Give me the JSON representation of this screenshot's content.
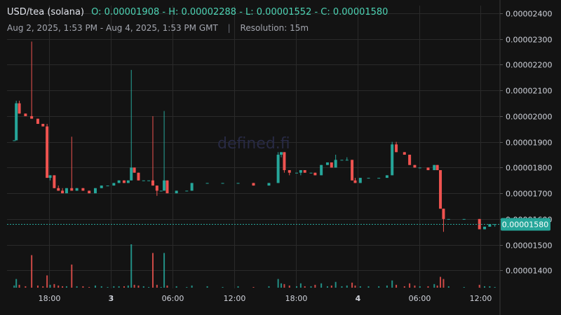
{
  "header": {
    "pair": "USD/tea (solana)",
    "ohlc": "O: 0.00001908 - H: 0.00002288 - L: 0.00001552 - C: 0.00001580"
  },
  "subheader": {
    "range": "Aug 2, 2025, 1:53 PM - Aug 4, 2025, 1:53 PM GMT",
    "separator": "|",
    "resolution": "Resolution: 15m"
  },
  "watermark": "defined.fi",
  "colors": {
    "up": "#26a69a",
    "down": "#ef5350",
    "bg": "#131313",
    "grid": "#2a2a2a",
    "price_tag": "#26a69a"
  },
  "chart_data": {
    "type": "candlestick",
    "y_ticks": [
      "0.00002400",
      "0.00002300",
      "0.00002200",
      "0.00002100",
      "0.00002000",
      "0.00001900",
      "0.00001800",
      "0.00001700",
      "0.00001600",
      "0.00001500",
      "0.00001400"
    ],
    "y_tick_values": [
      2.4e-05,
      2.3e-05,
      2.2e-05,
      2.1e-05,
      2e-05,
      1.9e-05,
      1.8e-05,
      1.7e-05,
      1.6e-05,
      1.5e-05,
      1.4e-05
    ],
    "ylim": [
      1.33e-05,
      2.43e-05
    ],
    "x_ticks": [
      {
        "label": "18:00",
        "t": 4.12,
        "bold": false
      },
      {
        "label": "3",
        "t": 10.12,
        "bold": true
      },
      {
        "label": "06:00",
        "t": 16.12,
        "bold": false
      },
      {
        "label": "12:00",
        "t": 22.12,
        "bold": false
      },
      {
        "label": "18:00",
        "t": 28.12,
        "bold": false
      },
      {
        "label": "4",
        "t": 34.12,
        "bold": true
      },
      {
        "label": "06:00",
        "t": 40.12,
        "bold": false
      },
      {
        "label": "12:00",
        "t": 46.12,
        "bold": false
      }
    ],
    "x_range_hours": [
      0,
      48
    ],
    "last_price": "0.00001580",
    "last_price_value": 1.58e-05,
    "candles": [
      {
        "t": 0.7,
        "o": 1.906e-05,
        "h": 1.906e-05,
        "l": 1.906e-05,
        "c": 1.906e-05,
        "v": 3
      },
      {
        "t": 0.9,
        "o": 1.906e-05,
        "h": 2.06e-05,
        "l": 1.906e-05,
        "c": 2.05e-05,
        "v": 12
      },
      {
        "t": 1.2,
        "o": 2.05e-05,
        "h": 2.06e-05,
        "l": 2.01e-05,
        "c": 2.01e-05,
        "v": 4
      },
      {
        "t": 1.8,
        "o": 2.01e-05,
        "h": 2.01e-05,
        "l": 2e-05,
        "c": 2e-05,
        "v": 2
      },
      {
        "t": 2.4,
        "o": 2e-05,
        "h": 2.29e-05,
        "l": 1.99e-05,
        "c": 1.99e-05,
        "v": 45
      },
      {
        "t": 3.0,
        "o": 1.99e-05,
        "h": 1.99e-05,
        "l": 1.97e-05,
        "c": 1.97e-05,
        "v": 3
      },
      {
        "t": 3.5,
        "o": 1.97e-05,
        "h": 1.97e-05,
        "l": 1.96e-05,
        "c": 1.96e-05,
        "v": 2
      },
      {
        "t": 3.9,
        "o": 1.96e-05,
        "h": 1.97e-05,
        "l": 1.76e-05,
        "c": 1.76e-05,
        "v": 17
      },
      {
        "t": 4.2,
        "o": 1.76e-05,
        "h": 1.77e-05,
        "l": 1.75e-05,
        "c": 1.77e-05,
        "v": 4
      },
      {
        "t": 4.6,
        "o": 1.77e-05,
        "h": 1.77e-05,
        "l": 1.72e-05,
        "c": 1.72e-05,
        "v": 5
      },
      {
        "t": 5.0,
        "o": 1.72e-05,
        "h": 1.73e-05,
        "l": 1.71e-05,
        "c": 1.71e-05,
        "v": 3
      },
      {
        "t": 5.4,
        "o": 1.71e-05,
        "h": 1.72e-05,
        "l": 1.7e-05,
        "c": 1.7e-05,
        "v": 2
      },
      {
        "t": 5.8,
        "o": 1.7e-05,
        "h": 1.72e-05,
        "l": 1.7e-05,
        "c": 1.72e-05,
        "v": 2
      },
      {
        "t": 6.3,
        "o": 1.72e-05,
        "h": 1.92e-05,
        "l": 1.71e-05,
        "c": 1.71e-05,
        "v": 32
      },
      {
        "t": 6.8,
        "o": 1.71e-05,
        "h": 1.72e-05,
        "l": 1.71e-05,
        "c": 1.72e-05,
        "v": 2
      },
      {
        "t": 7.4,
        "o": 1.72e-05,
        "h": 1.72e-05,
        "l": 1.71e-05,
        "c": 1.71e-05,
        "v": 2
      },
      {
        "t": 8.0,
        "o": 1.71e-05,
        "h": 1.71e-05,
        "l": 1.7e-05,
        "c": 1.7e-05,
        "v": 1
      },
      {
        "t": 8.6,
        "o": 1.7e-05,
        "h": 1.72e-05,
        "l": 1.7e-05,
        "c": 1.72e-05,
        "v": 3
      },
      {
        "t": 9.2,
        "o": 1.72e-05,
        "h": 1.73e-05,
        "l": 1.72e-05,
        "c": 1.73e-05,
        "v": 2
      },
      {
        "t": 9.8,
        "o": 1.73e-05,
        "h": 1.73e-05,
        "l": 1.73e-05,
        "c": 1.73e-05,
        "v": 1
      },
      {
        "t": 10.4,
        "o": 1.73e-05,
        "h": 1.74e-05,
        "l": 1.73e-05,
        "c": 1.74e-05,
        "v": 2
      },
      {
        "t": 10.9,
        "o": 1.74e-05,
        "h": 1.75e-05,
        "l": 1.74e-05,
        "c": 1.75e-05,
        "v": 2
      },
      {
        "t": 11.4,
        "o": 1.75e-05,
        "h": 1.75e-05,
        "l": 1.74e-05,
        "c": 1.74e-05,
        "v": 2
      },
      {
        "t": 11.8,
        "o": 1.74e-05,
        "h": 1.75e-05,
        "l": 1.74e-05,
        "c": 1.75e-05,
        "v": 3
      },
      {
        "t": 12.1,
        "o": 1.75e-05,
        "h": 2.18e-05,
        "l": 1.75e-05,
        "c": 1.8e-05,
        "v": 60
      },
      {
        "t": 12.4,
        "o": 1.8e-05,
        "h": 1.8e-05,
        "l": 1.78e-05,
        "c": 1.78e-05,
        "v": 4
      },
      {
        "t": 12.8,
        "o": 1.78e-05,
        "h": 1.78e-05,
        "l": 1.75e-05,
        "c": 1.75e-05,
        "v": 3
      },
      {
        "t": 13.3,
        "o": 1.75e-05,
        "h": 1.75e-05,
        "l": 1.75e-05,
        "c": 1.75e-05,
        "v": 2
      },
      {
        "t": 13.8,
        "o": 1.75e-05,
        "h": 1.75e-05,
        "l": 1.75e-05,
        "c": 1.75e-05,
        "v": 1
      },
      {
        "t": 14.2,
        "o": 1.75e-05,
        "h": 2e-05,
        "l": 1.73e-05,
        "c": 1.73e-05,
        "v": 48
      },
      {
        "t": 14.6,
        "o": 1.73e-05,
        "h": 1.73e-05,
        "l": 1.69e-05,
        "c": 1.71e-05,
        "v": 4
      },
      {
        "t": 15.0,
        "o": 1.71e-05,
        "h": 1.71e-05,
        "l": 1.71e-05,
        "c": 1.71e-05,
        "v": 1
      },
      {
        "t": 15.3,
        "o": 1.71e-05,
        "h": 2.02e-05,
        "l": 1.71e-05,
        "c": 1.75e-05,
        "v": 48
      },
      {
        "t": 15.6,
        "o": 1.75e-05,
        "h": 1.75e-05,
        "l": 1.7e-05,
        "c": 1.7e-05,
        "v": 3
      },
      {
        "t": 16.5,
        "o": 1.7e-05,
        "h": 1.71e-05,
        "l": 1.7e-05,
        "c": 1.71e-05,
        "v": 2
      },
      {
        "t": 17.5,
        "o": 1.71e-05,
        "h": 1.71e-05,
        "l": 1.71e-05,
        "c": 1.71e-05,
        "v": 1
      },
      {
        "t": 18.0,
        "o": 1.71e-05,
        "h": 1.74e-05,
        "l": 1.71e-05,
        "c": 1.74e-05,
        "v": 3
      },
      {
        "t": 19.5,
        "o": 1.74e-05,
        "h": 1.74e-05,
        "l": 1.74e-05,
        "c": 1.74e-05,
        "v": 2
      },
      {
        "t": 21.0,
        "o": 1.74e-05,
        "h": 1.74e-05,
        "l": 1.74e-05,
        "c": 1.74e-05,
        "v": 1
      },
      {
        "t": 22.5,
        "o": 1.74e-05,
        "h": 1.74e-05,
        "l": 1.74e-05,
        "c": 1.74e-05,
        "v": 2
      },
      {
        "t": 24.0,
        "o": 1.74e-05,
        "h": 1.74e-05,
        "l": 1.73e-05,
        "c": 1.73e-05,
        "v": 1
      },
      {
        "t": 25.5,
        "o": 1.73e-05,
        "h": 1.74e-05,
        "l": 1.73e-05,
        "c": 1.74e-05,
        "v": 2
      },
      {
        "t": 26.4,
        "o": 1.74e-05,
        "h": 1.86e-05,
        "l": 1.74e-05,
        "c": 1.85e-05,
        "v": 12
      },
      {
        "t": 26.7,
        "o": 1.85e-05,
        "h": 1.86e-05,
        "l": 1.84e-05,
        "c": 1.86e-05,
        "v": 6
      },
      {
        "t": 27.0,
        "o": 1.86e-05,
        "h": 1.86e-05,
        "l": 1.78e-05,
        "c": 1.79e-05,
        "v": 5
      },
      {
        "t": 27.5,
        "o": 1.79e-05,
        "h": 1.79e-05,
        "l": 1.77e-05,
        "c": 1.78e-05,
        "v": 3
      },
      {
        "t": 28.2,
        "o": 1.78e-05,
        "h": 1.78e-05,
        "l": 1.78e-05,
        "c": 1.78e-05,
        "v": 2
      },
      {
        "t": 28.6,
        "o": 1.78e-05,
        "h": 1.79e-05,
        "l": 1.77e-05,
        "c": 1.79e-05,
        "v": 6
      },
      {
        "t": 29.0,
        "o": 1.79e-05,
        "h": 1.79e-05,
        "l": 1.78e-05,
        "c": 1.78e-05,
        "v": 2
      },
      {
        "t": 29.6,
        "o": 1.78e-05,
        "h": 1.78e-05,
        "l": 1.78e-05,
        "c": 1.78e-05,
        "v": 2
      },
      {
        "t": 30.0,
        "o": 1.78e-05,
        "h": 1.78e-05,
        "l": 1.77e-05,
        "c": 1.77e-05,
        "v": 4
      },
      {
        "t": 30.6,
        "o": 1.77e-05,
        "h": 1.81e-05,
        "l": 1.77e-05,
        "c": 1.81e-05,
        "v": 6
      },
      {
        "t": 31.2,
        "o": 1.81e-05,
        "h": 1.82e-05,
        "l": 1.81e-05,
        "c": 1.82e-05,
        "v": 2
      },
      {
        "t": 31.6,
        "o": 1.82e-05,
        "h": 1.82e-05,
        "l": 1.8e-05,
        "c": 1.8e-05,
        "v": 3
      },
      {
        "t": 32.0,
        "o": 1.8e-05,
        "h": 1.85e-05,
        "l": 1.8e-05,
        "c": 1.83e-05,
        "v": 8
      },
      {
        "t": 32.6,
        "o": 1.83e-05,
        "h": 1.83e-05,
        "l": 1.83e-05,
        "c": 1.83e-05,
        "v": 2
      },
      {
        "t": 33.1,
        "o": 1.83e-05,
        "h": 1.84e-05,
        "l": 1.83e-05,
        "c": 1.83e-05,
        "v": 3
      },
      {
        "t": 33.6,
        "o": 1.83e-05,
        "h": 1.83e-05,
        "l": 1.75e-05,
        "c": 1.75e-05,
        "v": 7
      },
      {
        "t": 33.9,
        "o": 1.75e-05,
        "h": 1.76e-05,
        "l": 1.74e-05,
        "c": 1.74e-05,
        "v": 3
      },
      {
        "t": 34.4,
        "o": 1.74e-05,
        "h": 1.76e-05,
        "l": 1.74e-05,
        "c": 1.76e-05,
        "v": 2
      },
      {
        "t": 35.2,
        "o": 1.76e-05,
        "h": 1.76e-05,
        "l": 1.76e-05,
        "c": 1.76e-05,
        "v": 2
      },
      {
        "t": 36.2,
        "o": 1.76e-05,
        "h": 1.76e-05,
        "l": 1.76e-05,
        "c": 1.76e-05,
        "v": 2
      },
      {
        "t": 37.0,
        "o": 1.76e-05,
        "h": 1.77e-05,
        "l": 1.76e-05,
        "c": 1.77e-05,
        "v": 3
      },
      {
        "t": 37.5,
        "o": 1.77e-05,
        "h": 1.9e-05,
        "l": 1.77e-05,
        "c": 1.89e-05,
        "v": 10
      },
      {
        "t": 37.9,
        "o": 1.89e-05,
        "h": 1.9e-05,
        "l": 1.86e-05,
        "c": 1.86e-05,
        "v": 4
      },
      {
        "t": 38.7,
        "o": 1.86e-05,
        "h": 1.86e-05,
        "l": 1.85e-05,
        "c": 1.85e-05,
        "v": 2
      },
      {
        "t": 39.2,
        "o": 1.85e-05,
        "h": 1.85e-05,
        "l": 1.81e-05,
        "c": 1.81e-05,
        "v": 6
      },
      {
        "t": 39.7,
        "o": 1.81e-05,
        "h": 1.81e-05,
        "l": 1.8e-05,
        "c": 1.8e-05,
        "v": 3
      },
      {
        "t": 40.2,
        "o": 1.8e-05,
        "h": 1.8e-05,
        "l": 1.8e-05,
        "c": 1.8e-05,
        "v": 2
      },
      {
        "t": 41.0,
        "o": 1.8e-05,
        "h": 1.8e-05,
        "l": 1.79e-05,
        "c": 1.79e-05,
        "v": 2
      },
      {
        "t": 41.6,
        "o": 1.79e-05,
        "h": 1.81e-05,
        "l": 1.79e-05,
        "c": 1.81e-05,
        "v": 5
      },
      {
        "t": 41.9,
        "o": 1.81e-05,
        "h": 1.81e-05,
        "l": 1.79e-05,
        "c": 1.79e-05,
        "v": 3
      },
      {
        "t": 42.2,
        "o": 1.79e-05,
        "h": 1.79e-05,
        "l": 1.64e-05,
        "c": 1.64e-05,
        "v": 15
      },
      {
        "t": 42.5,
        "o": 1.64e-05,
        "h": 1.64e-05,
        "l": 1.55e-05,
        "c": 1.6e-05,
        "v": 12
      },
      {
        "t": 43.0,
        "o": 1.6e-05,
        "h": 1.6e-05,
        "l": 1.6e-05,
        "c": 1.6e-05,
        "v": 2
      },
      {
        "t": 44.5,
        "o": 1.6e-05,
        "h": 1.6e-05,
        "l": 1.6e-05,
        "c": 1.6e-05,
        "v": 1
      },
      {
        "t": 46.0,
        "o": 1.6e-05,
        "h": 1.6e-05,
        "l": 1.56e-05,
        "c": 1.56e-05,
        "v": 4
      },
      {
        "t": 46.5,
        "o": 1.56e-05,
        "h": 1.57e-05,
        "l": 1.56e-05,
        "c": 1.57e-05,
        "v": 2
      },
      {
        "t": 47.0,
        "o": 1.57e-05,
        "h": 1.58e-05,
        "l": 1.57e-05,
        "c": 1.58e-05,
        "v": 2
      },
      {
        "t": 47.5,
        "o": 1.58e-05,
        "h": 1.58e-05,
        "l": 1.57e-05,
        "c": 1.58e-05,
        "v": 1
      }
    ]
  }
}
